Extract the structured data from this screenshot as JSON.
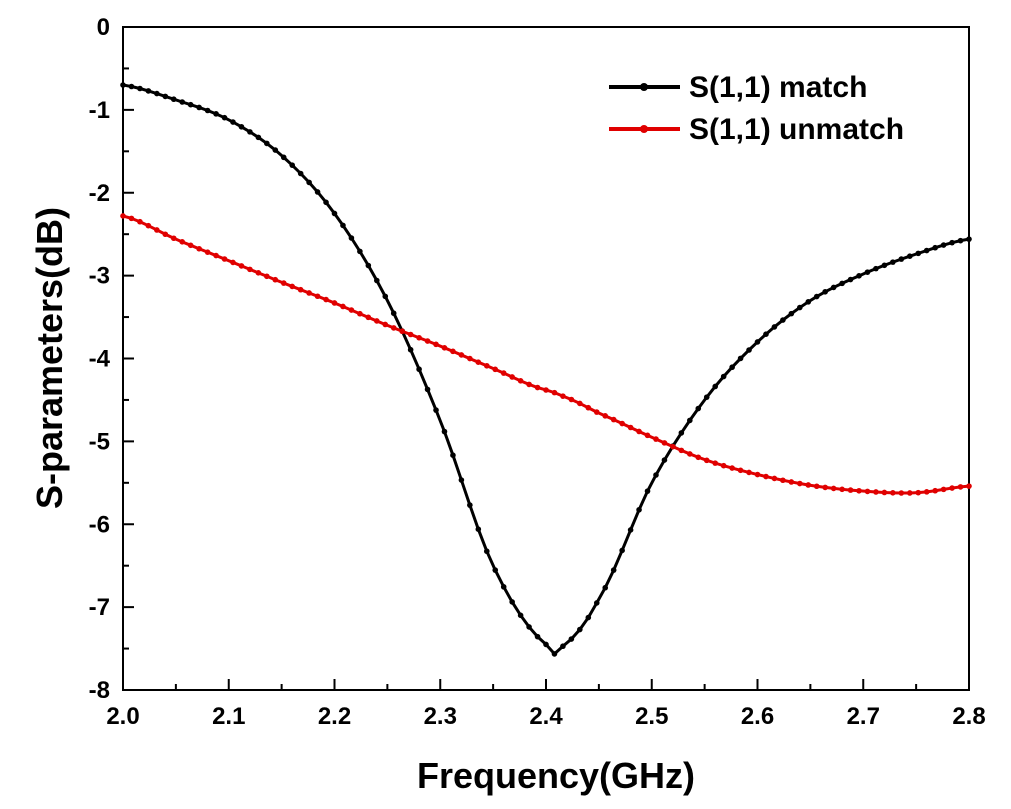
{
  "chart_data": {
    "type": "line",
    "title": "",
    "xlabel": "Frequency(GHz)",
    "ylabel": "S-parameters(dB)",
    "xlim": [
      2.0,
      2.8
    ],
    "ylim": [
      -8,
      0
    ],
    "xticks": [
      "2.0",
      "2.1",
      "2.2",
      "2.3",
      "2.4",
      "2.5",
      "2.6",
      "2.7",
      "2.8"
    ],
    "yticks": [
      "0",
      "-1",
      "-2",
      "-3",
      "-4",
      "-5",
      "-6",
      "-7",
      "-8"
    ],
    "grid": false,
    "legend_position": "top-right",
    "x": [
      2.0,
      2.05,
      2.1,
      2.15,
      2.2,
      2.25,
      2.3,
      2.35,
      2.4,
      2.41,
      2.45,
      2.5,
      2.55,
      2.6,
      2.65,
      2.7,
      2.75,
      2.8
    ],
    "series": [
      {
        "name": "S(1,1) match",
        "color": "#000000",
        "values": [
          -0.7,
          -0.88,
          -1.12,
          -1.55,
          -2.25,
          -3.3,
          -4.75,
          -6.5,
          -7.45,
          -7.52,
          -6.9,
          -5.5,
          -4.5,
          -3.8,
          -3.3,
          -2.98,
          -2.74,
          -2.56
        ]
      },
      {
        "name": "S(1,1) unmatch",
        "color": "#e00000",
        "values": [
          -2.28,
          -2.56,
          -2.82,
          -3.08,
          -3.33,
          -3.6,
          -3.85,
          -4.12,
          -4.38,
          -4.43,
          -4.66,
          -4.95,
          -5.22,
          -5.4,
          -5.53,
          -5.6,
          -5.62,
          -5.54
        ]
      }
    ]
  }
}
